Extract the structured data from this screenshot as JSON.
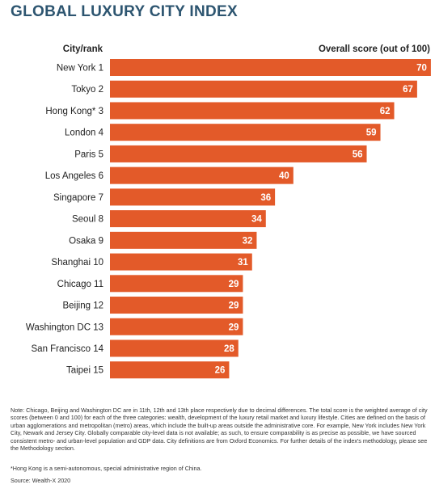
{
  "title": "GLOBAL LUXURY CITY INDEX",
  "header_left": "City/rank",
  "header_right": "Overall score (out of 100)",
  "colors": {
    "bar": "#e35a29",
    "title": "#2d5570",
    "value_text": "#ffffff"
  },
  "chart_data": {
    "type": "bar",
    "orientation": "horizontal",
    "title": "GLOBAL LUXURY CITY INDEX",
    "xlim": [
      0,
      100
    ],
    "grid": false,
    "categories": [
      "New York 1",
      "Tokyo 2",
      "Hong Kong* 3",
      "London 4",
      "Paris 5",
      "Los Angeles 6",
      "Singapore 7",
      "Seoul 8",
      "Osaka 9",
      "Shanghai 10",
      "Chicago 11",
      "Beijing 12",
      "Washington DC 13",
      "San Francisco 14",
      "Taipei 15"
    ],
    "values": [
      70,
      67,
      62,
      59,
      56,
      40,
      36,
      34,
      32,
      31,
      29,
      29,
      29,
      28,
      26
    ]
  },
  "notes": {
    "note": "Note: Chicago, Beijing and Washington DC are in 11th, 12th and 13th place respectively due to decimal differences. The total score is the weighted average of city scores (between 0 and 100) for each of the three categories: wealth, development of the luxury retail market and luxury lifestyle. Cities are defined on the basis of urban agglomerations and metropolitan (metro) areas, which include the built-up areas outside the administrative core. For example, New York includes New York City, Newark and Jersey City. Globally comparable city-level data is not available; as such, to ensure comparability is as precise as possible, we have sourced consistent metro- and urban-level population and GDP data. City definitions are from Oxford Economics. For further details of the index's methodology, please see the Methodology section.",
    "hong_kong": "*Hong Kong is a semi-autonomous, special administrative region of China.",
    "source": "Source: Wealth-X 2020"
  }
}
